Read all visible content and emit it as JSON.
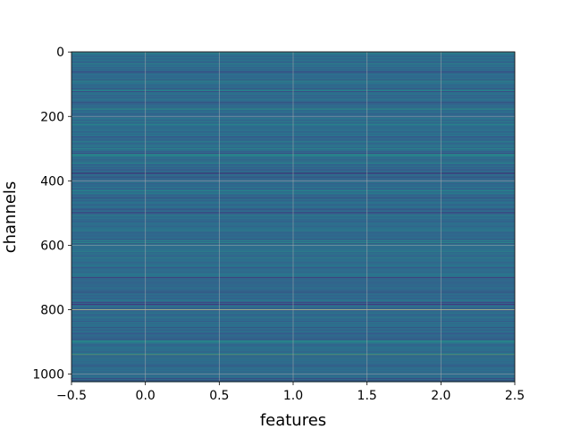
{
  "chart_data": {
    "type": "heatmap",
    "title": "",
    "xlabel": "features",
    "ylabel": "channels",
    "xlim": [
      -0.5,
      2.5
    ],
    "ylim": [
      1023.5,
      -0.5
    ],
    "y_inverted": true,
    "rows": 1024,
    "columns": 3,
    "colormap": "viridis",
    "grid": true,
    "x_ticks": [
      -0.5,
      0.0,
      0.5,
      1.0,
      1.5,
      2.0,
      2.5
    ],
    "x_tick_labels": [
      "−0.5",
      "0.0",
      "0.5",
      "1.0",
      "1.5",
      "2.0",
      "2.5"
    ],
    "y_ticks": [
      0,
      200,
      400,
      600,
      800,
      1000
    ],
    "y_tick_labels": [
      "0",
      "200",
      "400",
      "600",
      "800",
      "1000"
    ],
    "base_value": 0.35,
    "row_variation": 0.08,
    "highlighted_rows": [
      {
        "row": 375,
        "value": 0.0
      },
      {
        "row": 801,
        "value": 1.0
      },
      {
        "row": 940,
        "value": 0.82
      },
      {
        "row": 90,
        "value": 0.55
      },
      {
        "row": 278,
        "value": 0.55
      },
      {
        "row": 430,
        "value": 0.55
      },
      {
        "row": 640,
        "value": 0.6
      },
      {
        "row": 1015,
        "value": 0.1
      }
    ]
  }
}
